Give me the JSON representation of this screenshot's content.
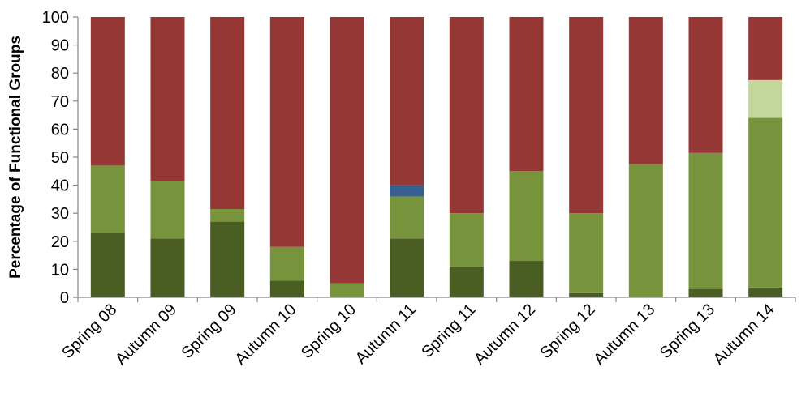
{
  "chart_data": {
    "type": "bar",
    "stacked": true,
    "categories": [
      "Spring 08",
      "Autumn 09",
      "Spring 09",
      "Autumn 10",
      "Spring 10",
      "Autumn 11",
      "Spring 11",
      "Autumn 12",
      "Spring 12",
      "Autumn 13",
      "Spring 13",
      "Autumn 14"
    ],
    "series": [
      {
        "color": "#4a5e23",
        "values": [
          23,
          21,
          27,
          6,
          0,
          21,
          11,
          13,
          1.5,
          0,
          3,
          3.5
        ]
      },
      {
        "color": "#77933c",
        "values": [
          24,
          20.5,
          4.5,
          12,
          5,
          15,
          19,
          32,
          28.5,
          47.5,
          48.5,
          60.5
        ]
      },
      {
        "color": "#c3d69b",
        "values": [
          0,
          0,
          0,
          0,
          0,
          0,
          0,
          0,
          0,
          0,
          0,
          13.5
        ]
      },
      {
        "color": "#376092",
        "values": [
          0,
          0,
          0,
          0,
          0,
          4,
          0,
          0,
          0,
          0,
          0,
          0
        ]
      },
      {
        "color": "#953735",
        "values": [
          53,
          58.5,
          68.5,
          82,
          95,
          60,
          70,
          55,
          70,
          52.5,
          48.5,
          22.5
        ]
      }
    ],
    "ylabel": "Percentage of Functional Groups",
    "xlabel": "",
    "ylim": [
      0,
      100
    ],
    "yticks": [
      0,
      10,
      20,
      30,
      40,
      50,
      60,
      70,
      80,
      90,
      100
    ],
    "grid": false,
    "legend": "none"
  }
}
